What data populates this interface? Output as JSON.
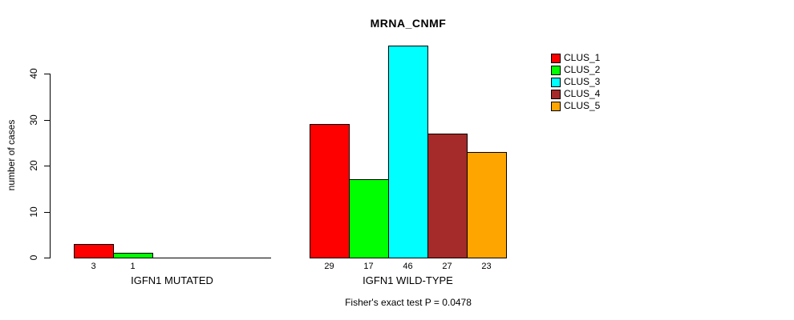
{
  "title": "MRNA_CNMF",
  "caption": "Fisher's exact test P = 0.0478",
  "y_axis": {
    "label": "number of cases",
    "ticks": [
      "0",
      "10",
      "20",
      "30",
      "40"
    ]
  },
  "legend": {
    "items": [
      {
        "label": "CLUS_1",
        "color": "#ff0000"
      },
      {
        "label": "CLUS_2",
        "color": "#00ff00"
      },
      {
        "label": "CLUS_3",
        "color": "#00ffff"
      },
      {
        "label": "CLUS_4",
        "color": "#a52a2a"
      },
      {
        "label": "CLUS_5",
        "color": "#ffa500"
      }
    ]
  },
  "chart_data": {
    "type": "bar",
    "title": "MRNA_CNMF",
    "xlabel": "",
    "ylabel": "number of cases",
    "ylim": [
      0,
      46
    ],
    "yticks": [
      0,
      10,
      20,
      30,
      40
    ],
    "grid": false,
    "legend_position": "top-right",
    "categories": [
      "IGFN1 MUTATED",
      "IGFN1 WILD-TYPE"
    ],
    "series": [
      {
        "name": "CLUS_1",
        "color": "#ff0000",
        "values": [
          3,
          29
        ]
      },
      {
        "name": "CLUS_2",
        "color": "#00ff00",
        "values": [
          1,
          17
        ]
      },
      {
        "name": "CLUS_3",
        "color": "#00ffff",
        "values": [
          0,
          46
        ]
      },
      {
        "name": "CLUS_4",
        "color": "#a52a2a",
        "values": [
          0,
          27
        ]
      },
      {
        "name": "CLUS_5",
        "color": "#ffa500",
        "values": [
          0,
          23
        ]
      }
    ],
    "bar_value_labels": [
      [
        "3",
        "1",
        "",
        "",
        ""
      ],
      [
        "29",
        "17",
        "46",
        "27",
        "23"
      ]
    ],
    "annotation": "Fisher's exact test P = 0.0478"
  }
}
